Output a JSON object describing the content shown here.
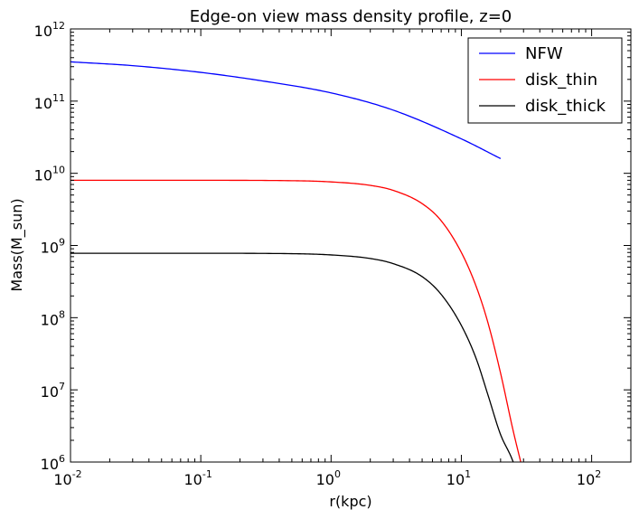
{
  "chart_data": {
    "type": "line",
    "title": "Edge-on view mass density profile, z=0",
    "xlabel": "r(kpc)",
    "ylabel": "Mass(M_sun)",
    "xscale": "log",
    "yscale": "log",
    "xlim": [
      0.01,
      200
    ],
    "ylim": [
      1000000,
      1000000000000
    ],
    "grid": false,
    "legend_position": "top-right",
    "x_ticks": [
      {
        "value": 0.01,
        "base": "10",
        "exp": "-2"
      },
      {
        "value": 0.1,
        "base": "10",
        "exp": "-1"
      },
      {
        "value": 1,
        "base": "10",
        "exp": "0"
      },
      {
        "value": 10,
        "base": "10",
        "exp": "1"
      },
      {
        "value": 100,
        "base": "10",
        "exp": "2"
      }
    ],
    "y_ticks": [
      {
        "value": 1000000,
        "base": "10",
        "exp": "6"
      },
      {
        "value": 10000000,
        "base": "10",
        "exp": "7"
      },
      {
        "value": 100000000,
        "base": "10",
        "exp": "8"
      },
      {
        "value": 1000000000,
        "base": "10",
        "exp": "9"
      },
      {
        "value": 10000000000,
        "base": "10",
        "exp": "10"
      },
      {
        "value": 100000000000,
        "base": "10",
        "exp": "11"
      },
      {
        "value": 1000000000000,
        "base": "10",
        "exp": "12"
      }
    ],
    "series": [
      {
        "name": "NFW",
        "color": "#0000ff",
        "x": [
          0.01,
          0.03,
          0.1,
          0.3,
          1,
          3,
          10,
          20
        ],
        "y": [
          350000000000,
          310000000000,
          250000000000,
          190000000000,
          130000000000,
          75000000000,
          30000000000,
          16000000000
        ]
      },
      {
        "name": "disk_thin",
        "color": "#ff0000",
        "x": [
          0.01,
          0.1,
          0.5,
          1,
          2,
          3,
          5,
          7,
          10,
          13,
          16,
          20,
          25,
          30
        ],
        "y": [
          8000000000,
          8000000000,
          7900000000,
          7600000000,
          6800000000,
          5800000000,
          3800000000,
          2200000000,
          800000000,
          270000000,
          85000000,
          17000000,
          2700000,
          700000
        ]
      },
      {
        "name": "disk_thick",
        "color": "#000000",
        "x": [
          0.01,
          0.1,
          0.5,
          1,
          2,
          3,
          5,
          7,
          10,
          13,
          16,
          20,
          24,
          27
        ],
        "y": [
          780000000,
          780000000,
          770000000,
          740000000,
          660000000,
          560000000,
          370000000,
          210000000,
          78000000,
          27000000,
          8500000,
          2400000,
          1200000,
          700000
        ]
      }
    ]
  }
}
